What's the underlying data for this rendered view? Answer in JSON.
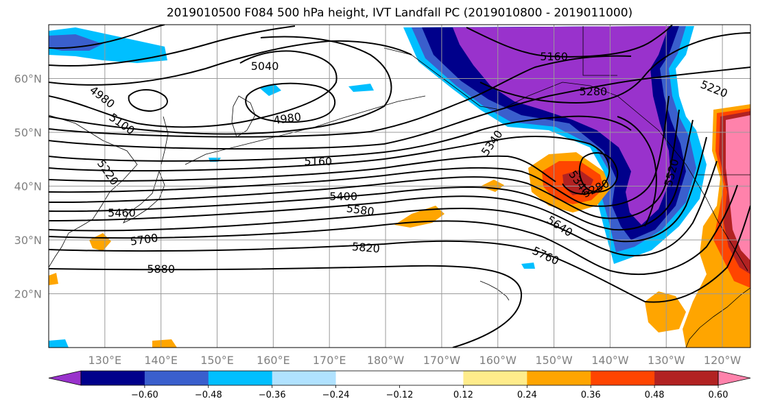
{
  "title": "2019010500 F084 500 hPa height, IVT Landfall PC (2019010800 - 2019011000)",
  "chart_data": {
    "type": "map",
    "projection": "equirectangular",
    "lon_range": [
      120,
      245
    ],
    "lat_range": [
      10,
      70
    ],
    "x_tick_labels": [
      "130°E",
      "140°E",
      "150°E",
      "160°E",
      "170°E",
      "180°W",
      "170°W",
      "160°W",
      "150°W",
      "140°W",
      "130°W",
      "120°W"
    ],
    "x_tick_lons": [
      130,
      140,
      150,
      160,
      170,
      180,
      190,
      200,
      210,
      220,
      230,
      240
    ],
    "y_tick_labels": [
      "20°N",
      "30°N",
      "40°N",
      "50°N",
      "60°N"
    ],
    "y_tick_lats": [
      20,
      30,
      40,
      50,
      60
    ],
    "grid": true,
    "colorbar": {
      "orientation": "horizontal",
      "extend": "both",
      "colors": [
        "#9932cc",
        "#00008b",
        "#3a5fcd",
        "#00bfff",
        "#b0e2ff",
        "#ffffff",
        "#ffffff",
        "#ffec8b",
        "#ffa500",
        "#ff4500",
        "#b22222",
        "#ff82ab"
      ],
      "tick_labels": [
        "−0.60",
        "−0.48",
        "−0.36",
        "−0.24",
        "−0.12",
        "0.12",
        "0.24",
        "0.36",
        "0.48",
        "0.60"
      ]
    },
    "contour_labels": [
      {
        "text": "5040",
        "lon": 158.5,
        "lat": 62.2,
        "rot": 0
      },
      {
        "text": "4980",
        "lon": 129.5,
        "lat": 56.5,
        "rot": 38
      },
      {
        "text": "5100",
        "lon": 133,
        "lat": 51.5,
        "rot": 35
      },
      {
        "text": "5220",
        "lon": 130.5,
        "lat": 42.5,
        "rot": 55
      },
      {
        "text": "4980",
        "lon": 162.5,
        "lat": 52.5,
        "rot": -8
      },
      {
        "text": "5160",
        "lon": 168,
        "lat": 44.5,
        "rot": 0
      },
      {
        "text": "5400",
        "lon": 172.5,
        "lat": 38,
        "rot": 0
      },
      {
        "text": "5460",
        "lon": 133,
        "lat": 35,
        "rot": 0
      },
      {
        "text": "5580",
        "lon": 175.5,
        "lat": 35.5,
        "rot": 8
      },
      {
        "text": "5700",
        "lon": 137,
        "lat": 30,
        "rot": -8
      },
      {
        "text": "5820",
        "lon": 176.5,
        "lat": 28.5,
        "rot": 5
      },
      {
        "text": "5880",
        "lon": 140,
        "lat": 24.5,
        "rot": 0
      },
      {
        "text": "5160",
        "lon": 210,
        "lat": 64,
        "rot": 0
      },
      {
        "text": "5280",
        "lon": 217,
        "lat": 57.5,
        "rot": 0
      },
      {
        "text": "5220",
        "lon": 238.5,
        "lat": 58,
        "rot": 22
      },
      {
        "text": "5340",
        "lon": 199,
        "lat": 48,
        "rot": -55
      },
      {
        "text": "5340",
        "lon": 214.5,
        "lat": 40.5,
        "rot": 55
      },
      {
        "text": "5280",
        "lon": 217.5,
        "lat": 39.5,
        "rot": -25
      },
      {
        "text": "5520",
        "lon": 231,
        "lat": 42.5,
        "rot": -75
      },
      {
        "text": "5640",
        "lon": 211,
        "lat": 32.5,
        "rot": 33
      },
      {
        "text": "5760",
        "lon": 208.5,
        "lat": 27,
        "rot": 25
      }
    ]
  },
  "icons": [
    "colorbar-arrow-left-icon",
    "colorbar-arrow-right-icon"
  ]
}
